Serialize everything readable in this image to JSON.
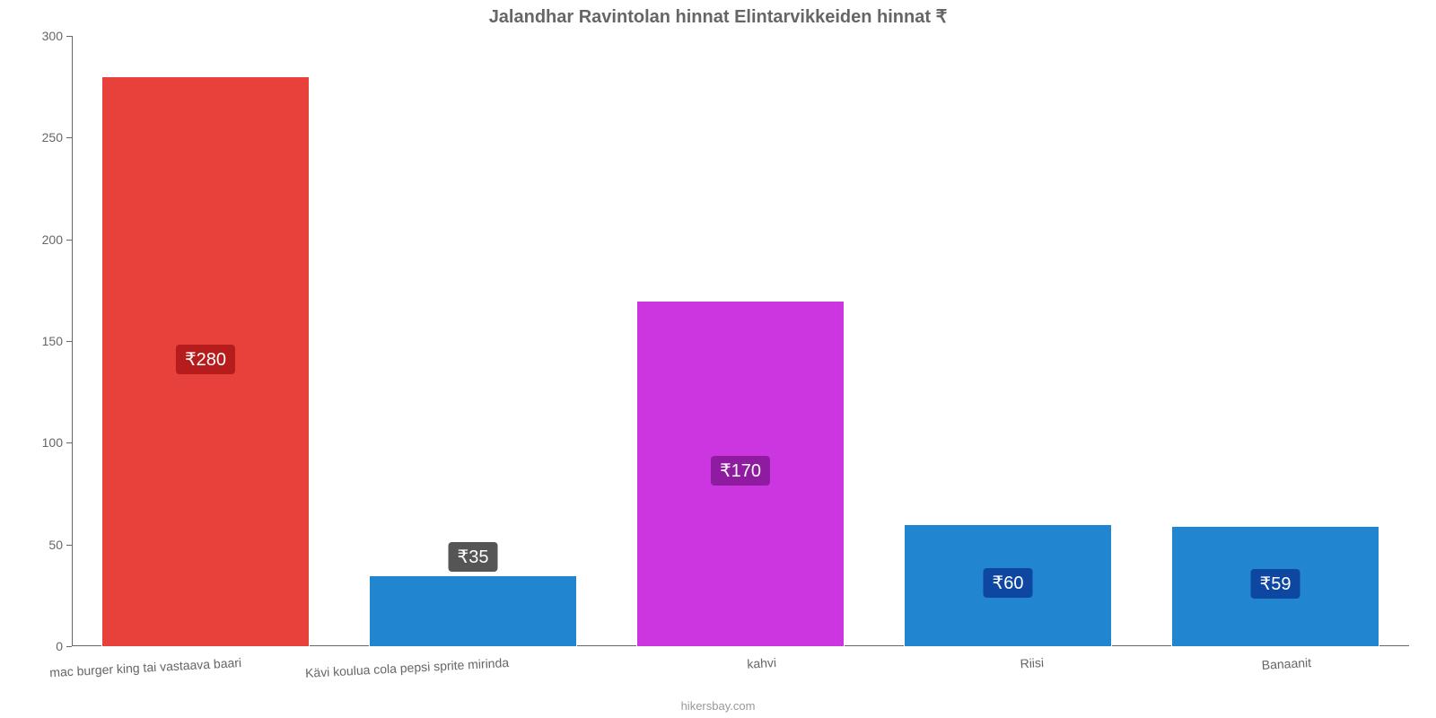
{
  "chart": {
    "type": "bar",
    "title": "Jalandhar Ravintolan hinnat Elintarvikkeiden hinnat ₹",
    "title_fontsize": 20,
    "title_color": "#666666",
    "footer": "hikersbay.com",
    "footer_color": "#999999",
    "background_color": "#ffffff",
    "axis_color": "#666666",
    "tick_label_color": "#666666",
    "tick_fontsize": 14,
    "bar_width_ratio": 0.78,
    "ylim": [
      0,
      300
    ],
    "ytick_step": 50,
    "yticks": [
      0,
      50,
      100,
      150,
      200,
      250,
      300
    ],
    "value_label_fontsize": 20,
    "value_label_text_color": "#ffffff",
    "categories": [
      "mac burger king tai vastaava baari",
      "Kävi koulua cola pepsi sprite mirinda",
      "kahvi",
      "Riisi",
      "Banaanit"
    ],
    "values": [
      280,
      35,
      170,
      60,
      59
    ],
    "value_labels": [
      "₹280",
      "₹35",
      "₹170",
      "₹60",
      "₹59"
    ],
    "bar_colors": [
      "#e8403a",
      "#2185d0",
      "#cb36e0",
      "#2185d0",
      "#2185d0"
    ],
    "value_badge_bg": [
      "#b71c1c",
      "#555555",
      "#8e1ba0",
      "#0d47a1",
      "#0d47a1"
    ]
  }
}
